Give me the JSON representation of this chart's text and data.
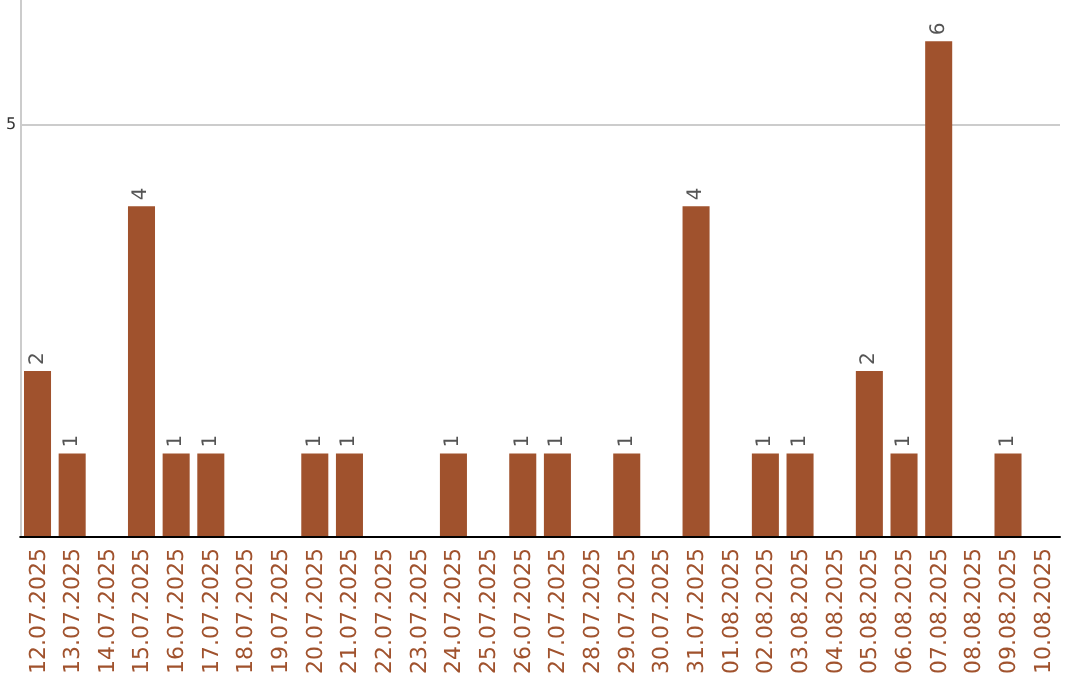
{
  "chart_data": {
    "type": "bar",
    "categories": [
      "12.07.2025",
      "13.07.2025",
      "14.07.2025",
      "15.07.2025",
      "16.07.2025",
      "17.07.2025",
      "18.07.2025",
      "19.07.2025",
      "20.07.2025",
      "21.07.2025",
      "22.07.2025",
      "23.07.2025",
      "24.07.2025",
      "25.07.2025",
      "26.07.2025",
      "27.07.2025",
      "28.07.2025",
      "29.07.2025",
      "30.07.2025",
      "31.07.2025",
      "01.08.2025",
      "02.08.2025",
      "03.08.2025",
      "04.08.2025",
      "05.08.2025",
      "06.08.2025",
      "07.08.2025",
      "08.08.2025",
      "09.08.2025",
      "10.08.2025"
    ],
    "values": [
      2,
      1,
      null,
      4,
      1,
      1,
      null,
      null,
      1,
      1,
      null,
      null,
      1,
      null,
      1,
      1,
      null,
      1,
      null,
      4,
      null,
      1,
      1,
      null,
      2,
      1,
      6,
      null,
      1,
      null
    ],
    "color": "#a0522d",
    "ylim": [
      0,
      6.5
    ],
    "yticks": [
      {
        "value": 0,
        "label": null
      },
      5
    ],
    "grid": "y",
    "data_labels": true
  }
}
